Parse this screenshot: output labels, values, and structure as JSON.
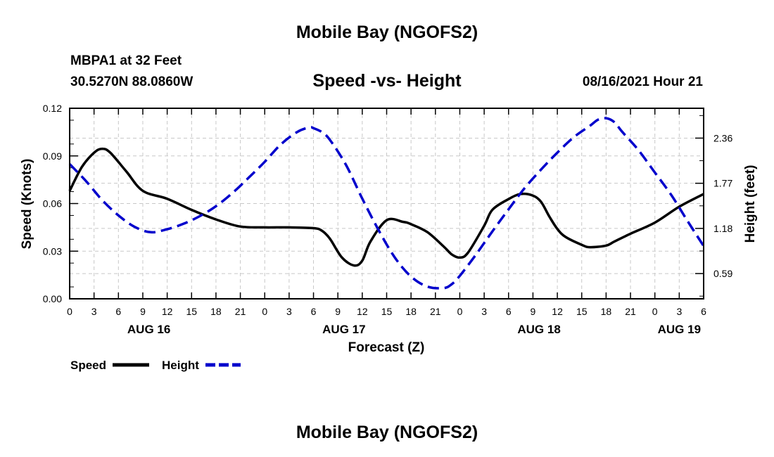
{
  "header": {
    "title_top": "Mobile Bay (NGOFS2)",
    "station": "MBPA1 at 32 Feet",
    "coords": "30.5270N  88.0860W",
    "datetime": "08/16/2021 Hour 21",
    "title_bottom": "Mobile Bay (NGOFS2)"
  },
  "chart_data": {
    "type": "line",
    "title": "Speed -vs- Height",
    "xlabel": "Forecast (Z)",
    "ylabel": "Speed (Knots)",
    "y2label": "Height (feet)",
    "x_hours_range": [
      0,
      78
    ],
    "ylim": [
      0,
      0.12
    ],
    "y2lim": [
      0.26,
      2.75
    ],
    "yticks": [
      "0.00",
      "0.03",
      "0.06",
      "0.09",
      "0.12"
    ],
    "y2ticks": [
      "0.59",
      "1.18",
      "1.77",
      "2.36"
    ],
    "xtick_labels": [
      "0",
      "3",
      "6",
      "9",
      "12",
      "15",
      "18",
      "21",
      "0",
      "3",
      "6",
      "9",
      "12",
      "15",
      "18",
      "21",
      "0",
      "3",
      "6",
      "9",
      "12",
      "15",
      "18",
      "21",
      "0",
      "3",
      "6"
    ],
    "date_labels": [
      {
        "label": "AUG 16",
        "hour": 9.75
      },
      {
        "label": "AUG 17",
        "hour": 33.75
      },
      {
        "label": "AUG 18",
        "hour": 57.75
      },
      {
        "label": "AUG 19",
        "hour": 75
      }
    ],
    "grid": true,
    "series": [
      {
        "name": "Speed",
        "axis": "left",
        "color": "#000000",
        "dash": "solid",
        "x": [
          0,
          1.5,
          3,
          4,
          5,
          7,
          9,
          12,
          15,
          18,
          21,
          24,
          27,
          30,
          31,
          32,
          33.5,
          35,
          36,
          37,
          39,
          41,
          42,
          44,
          46,
          47,
          48,
          49,
          51,
          52,
          54,
          55.5,
          57,
          58,
          59,
          60,
          61,
          63,
          64,
          66,
          67,
          69,
          72,
          75,
          78
        ],
        "values": [
          0.068,
          0.083,
          0.092,
          0.0945,
          0.092,
          0.08,
          0.068,
          0.063,
          0.056,
          0.05,
          0.0455,
          0.045,
          0.045,
          0.0445,
          0.043,
          0.038,
          0.026,
          0.021,
          0.024,
          0.036,
          0.0495,
          0.0485,
          0.047,
          0.042,
          0.033,
          0.028,
          0.026,
          0.029,
          0.046,
          0.056,
          0.0628,
          0.066,
          0.065,
          0.061,
          0.052,
          0.044,
          0.039,
          0.034,
          0.0325,
          0.0335,
          0.036,
          0.041,
          0.048,
          0.058,
          0.066
        ]
      },
      {
        "name": "Height",
        "axis": "right",
        "color": "#0000cc",
        "dash": "dashed",
        "x": [
          0,
          2,
          4,
          6,
          8,
          10,
          12,
          14,
          16,
          18,
          20,
          22,
          24,
          26,
          28,
          29.5,
          30,
          31,
          32,
          34,
          36,
          38,
          40,
          42,
          44,
          46,
          47,
          48,
          50,
          52,
          54,
          56,
          58,
          60,
          62,
          64,
          65,
          66,
          67,
          68,
          70,
          72,
          74,
          76,
          78
        ],
        "values": [
          2.02,
          1.8,
          1.55,
          1.35,
          1.2,
          1.13,
          1.17,
          1.24,
          1.34,
          1.47,
          1.64,
          1.84,
          2.05,
          2.28,
          2.44,
          2.5,
          2.49,
          2.44,
          2.34,
          2.01,
          1.57,
          1.16,
          0.8,
          0.55,
          0.42,
          0.4,
          0.45,
          0.56,
          0.84,
          1.14,
          1.43,
          1.71,
          1.95,
          2.17,
          2.37,
          2.52,
          2.6,
          2.62,
          2.57,
          2.44,
          2.2,
          1.91,
          1.62,
          1.28,
          0.95
        ]
      }
    ],
    "legend": {
      "position": "bottom-left",
      "entries": [
        {
          "label": "Speed",
          "color": "#000000",
          "dash": "solid"
        },
        {
          "label": "Height",
          "color": "#0000cc",
          "dash": "dashed"
        }
      ]
    }
  }
}
